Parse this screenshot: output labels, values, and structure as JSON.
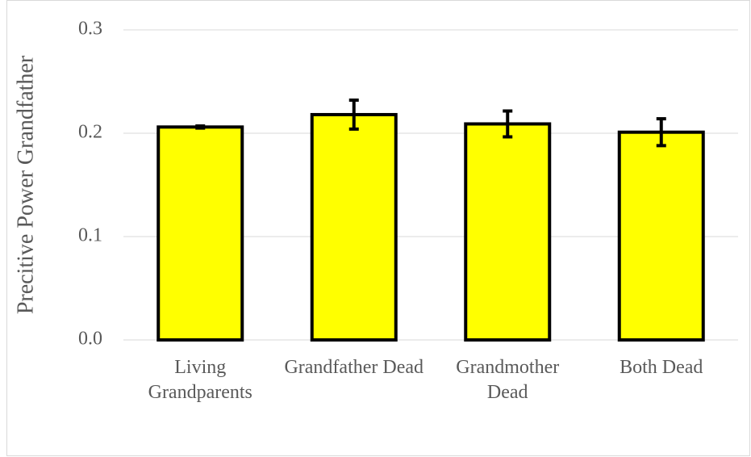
{
  "chart_data": {
    "type": "bar",
    "y_label": "Precitive Power Grandfather",
    "categories": [
      "Living Grandparents",
      "Grandfather Dead",
      "Grandmother Dead",
      "Both Dead"
    ],
    "values": [
      0.206,
      0.218,
      0.209,
      0.201
    ],
    "errors": [
      0.001,
      0.014,
      0.0125,
      0.013
    ],
    "color": "#ffff00",
    "ylim": [
      0,
      0.3
    ],
    "yticks": [
      {
        "value": 0,
        "label": "0.0"
      },
      0.1,
      0.2,
      0.3
    ],
    "grid": true
  }
}
